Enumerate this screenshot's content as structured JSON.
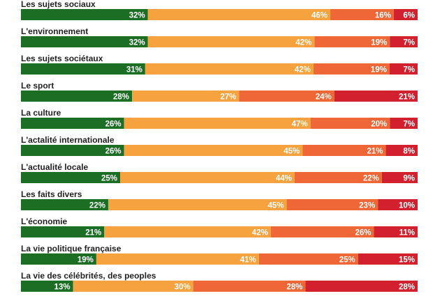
{
  "chart_data": {
    "type": "bar",
    "orientation": "horizontal",
    "stacked": true,
    "categories": [
      "Les sujets sociaux",
      "L'environnement",
      "Les sujets sociétaux",
      "Le sport",
      "La culture",
      "L'actalité internationale",
      "L'actualité locale",
      "Les faits divers",
      "L'économie",
      "La vie politique française",
      "La vie des célébrités, des peoples"
    ],
    "series": [
      {
        "color": "#1b6e24",
        "values": [
          32,
          32,
          31,
          28,
          26,
          26,
          25,
          22,
          21,
          19,
          13
        ]
      },
      {
        "color": "#f5a23f",
        "values": [
          46,
          42,
          42,
          27,
          47,
          45,
          44,
          45,
          42,
          41,
          30
        ]
      },
      {
        "color": "#ef6637",
        "values": [
          16,
          19,
          19,
          24,
          20,
          21,
          22,
          23,
          26,
          25,
          28
        ]
      },
      {
        "color": "#d2202e",
        "values": [
          6,
          7,
          7,
          21,
          7,
          8,
          9,
          10,
          11,
          15,
          28
        ]
      }
    ],
    "value_suffix": "%",
    "xlim": [
      0,
      100
    ],
    "grid": false,
    "legend": "none"
  }
}
